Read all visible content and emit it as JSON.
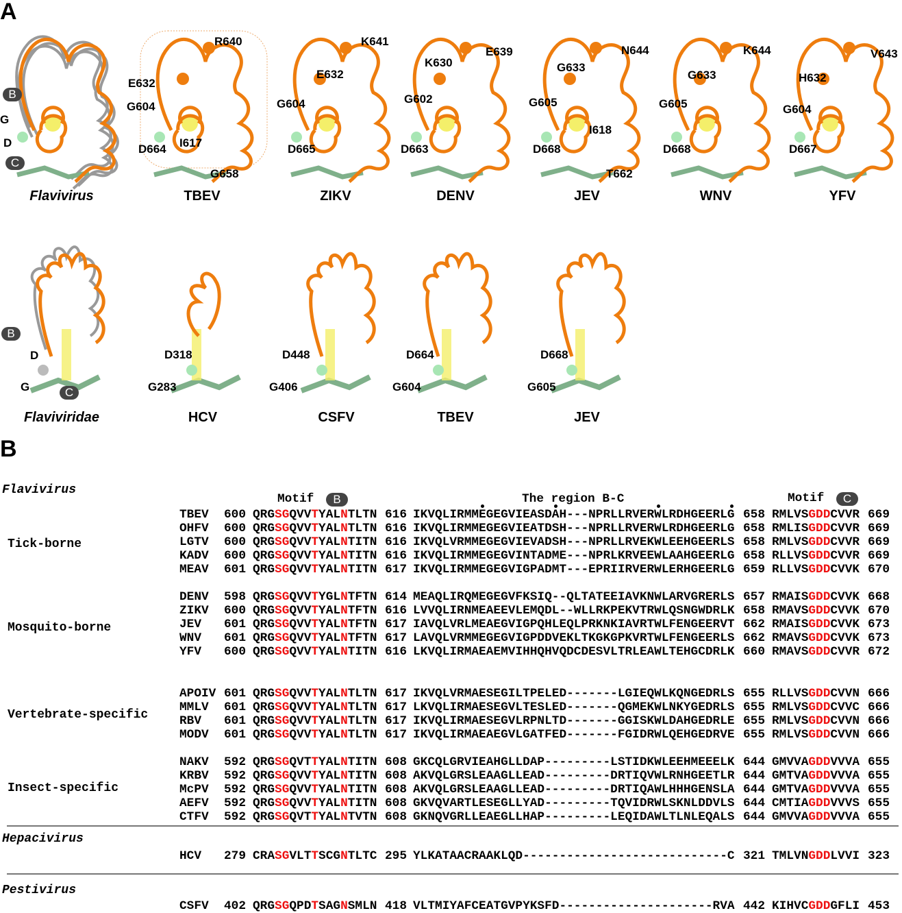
{
  "panel_a": {
    "label": "A",
    "top_row": [
      {
        "name": "Flavivirus",
        "italic": true,
        "residues": [
          "B",
          "G",
          "D",
          "C"
        ]
      },
      {
        "name": "TBEV",
        "residues": [
          "R640",
          "E632",
          "G604",
          "D664",
          "I617",
          "G658"
        ]
      },
      {
        "name": "ZIKV",
        "residues": [
          "K641",
          "E632",
          "G604",
          "D665"
        ]
      },
      {
        "name": "DENV",
        "residues": [
          "E639",
          "K630",
          "G602",
          "D663"
        ]
      },
      {
        "name": "JEV",
        "residues": [
          "N644",
          "G633",
          "G605",
          "I618",
          "D668",
          "T662"
        ]
      },
      {
        "name": "WNV",
        "residues": [
          "K644",
          "G633",
          "G605",
          "D668"
        ]
      },
      {
        "name": "YFV",
        "residues": [
          "V643",
          "H632",
          "G604",
          "D667"
        ]
      }
    ],
    "bottom_row": [
      {
        "name": "Flaviviridae",
        "italic": true,
        "residues": [
          "B",
          "D",
          "G",
          "C"
        ]
      },
      {
        "name": "HCV",
        "residues": [
          "D318",
          "G283"
        ]
      },
      {
        "name": "CSFV",
        "residues": [
          "D448",
          "G406"
        ]
      },
      {
        "name": "TBEV",
        "residues": [
          "D664",
          "G604"
        ]
      },
      {
        "name": "JEV",
        "residues": [
          "D668",
          "G605"
        ]
      }
    ],
    "colors": {
      "backbone": "#ee7d0e",
      "strand": "#7fb08a",
      "sphere": "#a8e6b4",
      "helix_core": "#f4ef6a",
      "density_mesh": "#e8964a",
      "superposed": "#999999"
    }
  },
  "panel_b": {
    "label": "B",
    "headers": {
      "motif_b": "Motif",
      "motif_b_badge": "B",
      "region": "The region B-C",
      "motif_c": "Motif",
      "motif_c_badge": "C"
    },
    "families": [
      {
        "name": "Flavivirus"
      },
      {
        "name": "Hepacivirus"
      },
      {
        "name": "Pestivirus"
      }
    ],
    "groups": [
      {
        "name": "Tick-borne",
        "family": 0,
        "rows": [
          {
            "virus": "TBEV",
            "b_start": "600",
            "motif_b": "QRGSGQVVTYALNTLTN",
            "r_start": "616",
            "region": "IKVQLIRMMEGEGVIEASDAH---NPRLLRVERWLRDHGEERLG",
            "r_end": "658",
            "motif_c": "RMLVSGDDCVVR",
            "c_end": "669"
          },
          {
            "virus": "OHFV",
            "b_start": "600",
            "motif_b": "QRGSGQVVTYALNTLTN",
            "r_start": "616",
            "region": "IKVQLIRMMEGEGVIEATDSH---NPRLLRVERWLRDHGEERLG",
            "r_end": "658",
            "motif_c": "RMLISGDDCVVR",
            "c_end": "669"
          },
          {
            "virus": "LGTV",
            "b_start": "600",
            "motif_b": "QRGSGQVVTYALNTITN",
            "r_start": "616",
            "region": "IKVQLVRMMEGEGVIEVADSH---NPRLLRVEKWLEEHGEERLS",
            "r_end": "658",
            "motif_c": "RMLVSGDDCVVR",
            "c_end": "669"
          },
          {
            "virus": "KADV",
            "b_start": "600",
            "motif_b": "QRGSGQVVTYALNTITN",
            "r_start": "616",
            "region": "IKVQLIRMMEGEGVINTADME---NPRLKRVEEWLAAHGEERLG",
            "r_end": "658",
            "motif_c": "RLLVSGDDCVVR",
            "c_end": "669"
          },
          {
            "virus": "MEAV",
            "b_start": "601",
            "motif_b": "QRGSGQVVTYALNTITN",
            "r_start": "617",
            "region": "IKVQLIRMMEGEGVIGPADMT---EPRIIRVERWLERHGEERLG",
            "r_end": "659",
            "motif_c": "RLLVSGDDCVVK",
            "c_end": "670"
          }
        ]
      },
      {
        "name": "Mosquito-borne",
        "family": 0,
        "rows": [
          {
            "virus": "DENV",
            "b_start": "598",
            "motif_b": "QRGSGQVVTYGLNTFTN",
            "r_start": "614",
            "region": "MEAQLIRQMEGEGVFKSIQ--QLTATEEIAVKNWLARVGRERLS",
            "r_end": "657",
            "motif_c": "RMAISGDDCVVK",
            "c_end": "668"
          },
          {
            "virus": "ZIKV",
            "b_start": "600",
            "motif_b": "QRGSGQVVTYALNTFTN",
            "r_start": "616",
            "region": "LVVQLIRNMEAEEVLEMQDL--WLLRKPEKVTRWLQSNGWDRLK",
            "r_end": "658",
            "motif_c": "RMAVSGDDCVVK",
            "c_end": "670"
          },
          {
            "virus": "JEV",
            "b_start": "601",
            "motif_b": "QRGSGQVVTYALNTFTN",
            "r_start": "617",
            "region": "IAVQLVRLMEAEGVIGPQHLEQLPRKNKIAVRTWLFENGEERVT",
            "r_end": "662",
            "motif_c": "RMAISGDDCVVK",
            "c_end": "673"
          },
          {
            "virus": "WNV",
            "b_start": "601",
            "motif_b": "QRGSGQVVTYALNTFTN",
            "r_start": "617",
            "region": "LAVQLVRMMEGEGVIGPDDVEKLTKGKGPKVRTWLFENGEERLS",
            "r_end": "662",
            "motif_c": "RMAVSGDDCVVK",
            "c_end": "673"
          },
          {
            "virus": "YFV",
            "b_start": "600",
            "motif_b": "QRGSGQVVTYALNTITN",
            "r_start": "616",
            "region": "LKVQLIRMAEAEMVIHHQHVQDCDESVLTRLEAWLTEHGCDRLK",
            "r_end": "660",
            "motif_c": "RMAVSGDDCVVR",
            "c_end": "672"
          }
        ]
      },
      {
        "name": "Vertebrate-specific",
        "family": 0,
        "rows": [
          {
            "virus": "APOIV",
            "b_start": "601",
            "motif_b": "QRGSGQVVTYALNTLTN",
            "r_start": "617",
            "region": "IKVQLVRMAESEGILTPELED-------LGIEQWLKQNGEDRLS",
            "r_end": "655",
            "motif_c": "RLLVSGDDCVVN",
            "c_end": "666"
          },
          {
            "virus": "MMLV",
            "b_start": "601",
            "motif_b": "QRGSGQVVTYALNTLTN",
            "r_start": "617",
            "region": "LKVQLIRMAESEGVLTESLED-------QGMEKWLNKYGEDRLS",
            "r_end": "655",
            "motif_c": "RMLVSGDDCVVC",
            "c_end": "666"
          },
          {
            "virus": "RBV",
            "b_start": "601",
            "motif_b": "QRGSGQVVTYALNTLTN",
            "r_start": "617",
            "region": "IKVQLIRMAESEGVLRPNLTD-------GGISKWLDAHGEDRLE",
            "r_end": "655",
            "motif_c": "RMLVSGDDCVVN",
            "c_end": "666"
          },
          {
            "virus": "MODV",
            "b_start": "601",
            "motif_b": "QRGSGQVVTYALNTLTN",
            "r_start": "617",
            "region": "IKVQLIRMAEAEGVLGATFED-------FGIDRWLQEHGEDRVE",
            "r_end": "655",
            "motif_c": "RMLVSGDDCVVN",
            "c_end": "666"
          }
        ]
      },
      {
        "name": "Insect-specific",
        "family": 0,
        "rows": [
          {
            "virus": "NAKV",
            "b_start": "592",
            "motif_b": "QRGSGQVTTYALNTITN",
            "r_start": "608",
            "region": "GKCQLGRVIEAHGLLDAP---------LSTIDKWLEEHMEEELK",
            "r_end": "644",
            "motif_c": "GMVVAGDDVVVA",
            "c_end": "655"
          },
          {
            "virus": "KRBV",
            "b_start": "592",
            "motif_b": "QRGSGQVVTYALNTITN",
            "r_start": "608",
            "region": "AKVQLGRSLEAAGLLEAD---------DRTIQVWLRNHGEETLR",
            "r_end": "644",
            "motif_c": "GMTVAGDDVVVA",
            "c_end": "655"
          },
          {
            "virus": "McPV",
            "b_start": "592",
            "motif_b": "QRGSGQVVTYALNTITN",
            "r_start": "608",
            "region": "AKVQLGRSLEAAGLLEAD---------DRTIQAWLHHHGENSLA",
            "r_end": "644",
            "motif_c": "GMTVAGDDVVVA",
            "c_end": "655"
          },
          {
            "virus": "AEFV",
            "b_start": "592",
            "motif_b": "QRGSGQVVTYALNTITN",
            "r_start": "608",
            "region": "GKVQVARTLESEGLLYAD---------TQVIDRWLSKNLDDVLS",
            "r_end": "644",
            "motif_c": "CMTIAGDDVVVS",
            "c_end": "655"
          },
          {
            "virus": "CTFV",
            "b_start": "592",
            "motif_b": "QRGSGQVTTYALNTVTN",
            "r_start": "608",
            "region": "GKNQVGRLLEAEGLLHAP---------LEQIDAWLTLNLEQALS",
            "r_end": "644",
            "motif_c": "GMVVAGDDVVVA",
            "c_end": "655"
          }
        ]
      },
      {
        "name": "",
        "family": 1,
        "rows": [
          {
            "virus": "HCV",
            "b_start": "279",
            "motif_b": "CRASGVLTTSCGNTLTC",
            "r_start": "295",
            "region": "YLKATAACRAAKLQD----------------------------C",
            "r_end": "321",
            "motif_c": "TMLVNGDDLVVI",
            "c_end": "323"
          }
        ]
      },
      {
        "name": "",
        "family": 2,
        "rows": [
          {
            "virus": "CSFV",
            "b_start": "402",
            "motif_b": "QRGSGQPDTSAGNSMLN",
            "r_start": "418",
            "region": "VLTMIYAFCEATGVPYKSFD---------------------RVA",
            "r_end": "442",
            "motif_c": "KIHVCGDDGFLI",
            "c_end": "453"
          }
        ]
      }
    ],
    "motif_b_highlight_indices": [
      3,
      4,
      8,
      12
    ],
    "motif_c_highlight_indices": [
      5,
      6,
      7
    ],
    "region_marked_indices": [
      9,
      19,
      33,
      43
    ],
    "colors": {
      "highlight": "#ee1111",
      "badge": "#444444",
      "separator": "#777777"
    }
  }
}
